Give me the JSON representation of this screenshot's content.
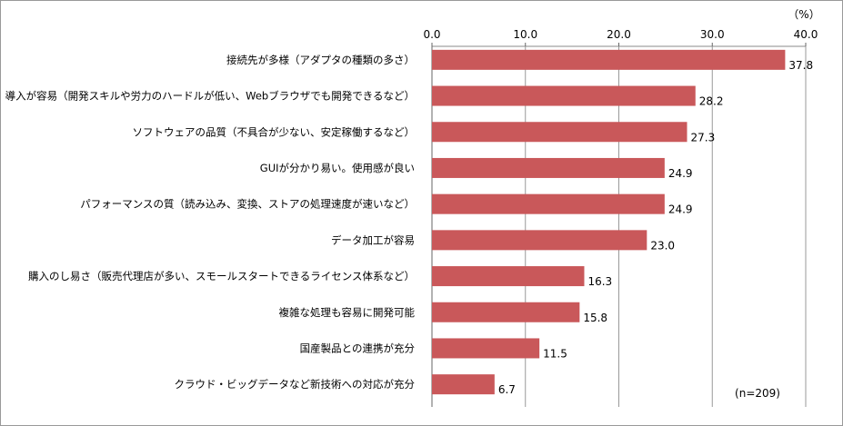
{
  "chart_data": {
    "type": "bar",
    "orientation": "horizontal",
    "unit_label": "（%）",
    "note": "(n=209)",
    "xlim": [
      0,
      40
    ],
    "ticks": [
      "0.0",
      "10.0",
      "20.0",
      "30.0",
      "40.0"
    ],
    "tick_values": [
      0,
      10,
      20,
      30,
      40
    ],
    "grid": true,
    "bar_color": "#c9585a",
    "categories": [
      "接続先が多様（アダプタの種類の多さ）",
      "導入が容易（開発スキルや労力のハードルが低い、Webブラウザでも開発できるなど）",
      "ソフトウェアの品質（不具合が少ない、安定稼働するなど）",
      "GUIが分かり易い。使用感が良い",
      "パフォーマンスの質（読み込み、変換、ストアの処理速度が速いなど）",
      "データ加工が容易",
      "購入のし易さ（販売代理店が多い、スモールスタートできるライセンス体系など）",
      "複雑な処理も容易に開発可能",
      "国産製品との連携が充分",
      "クラウド・ビッグデータなど新技術への対応が充分"
    ],
    "values": [
      37.8,
      28.2,
      27.3,
      24.9,
      24.9,
      23.0,
      16.3,
      15.8,
      11.5,
      6.7
    ],
    "value_labels": [
      "37.8",
      "28.2",
      "27.3",
      "24.9",
      "24.9",
      "23.0",
      "16.3",
      "15.8",
      "11.5",
      "6.7"
    ]
  }
}
